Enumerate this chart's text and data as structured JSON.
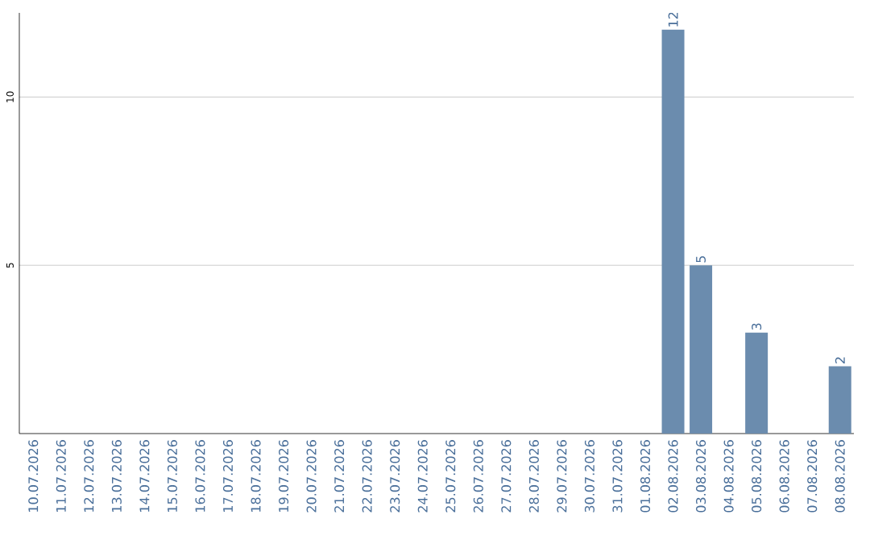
{
  "chart_data": {
    "type": "bar",
    "categories": [
      "10.07.2026",
      "11.07.2026",
      "12.07.2026",
      "13.07.2026",
      "14.07.2026",
      "15.07.2026",
      "16.07.2026",
      "17.07.2026",
      "18.07.2026",
      "19.07.2026",
      "20.07.2026",
      "21.07.2026",
      "22.07.2026",
      "23.07.2026",
      "24.07.2026",
      "25.07.2026",
      "26.07.2026",
      "27.07.2026",
      "28.07.2026",
      "29.07.2026",
      "30.07.2026",
      "31.07.2026",
      "01.08.2026",
      "02.08.2026",
      "03.08.2026",
      "04.08.2026",
      "05.08.2026",
      "06.08.2026",
      "07.08.2026",
      "08.08.2026"
    ],
    "values": [
      0,
      0,
      0,
      0,
      0,
      0,
      0,
      0,
      0,
      0,
      0,
      0,
      0,
      0,
      0,
      0,
      0,
      0,
      0,
      0,
      0,
      0,
      0,
      12,
      5,
      0,
      3,
      0,
      0,
      2
    ],
    "value_labels": [
      null,
      null,
      null,
      null,
      null,
      null,
      null,
      null,
      null,
      null,
      null,
      null,
      null,
      null,
      null,
      null,
      null,
      null,
      null,
      null,
      null,
      null,
      null,
      "12",
      "5",
      null,
      "3",
      null,
      null,
      "2"
    ],
    "color": "#6b8cae",
    "ylim": [
      0,
      12.5
    ],
    "yticks": [
      5,
      10
    ],
    "grid": "y"
  }
}
